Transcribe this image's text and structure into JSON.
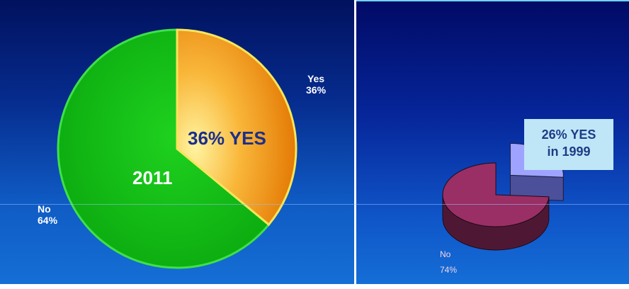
{
  "chart_data": [
    {
      "type": "pie",
      "slices": [
        {
          "label": "Yes",
          "value": 36,
          "value_label": "36%",
          "color": "#f08a12"
        },
        {
          "label": "No",
          "value": 64,
          "value_label": "64%",
          "color": "#10c312"
        }
      ],
      "annotations": {
        "year": "2011",
        "highlight": "36% YES"
      }
    },
    {
      "type": "pie",
      "style": "3d",
      "slices": [
        {
          "label": "Yes",
          "value": 26,
          "color": "#9ea3ff"
        },
        {
          "label": "No",
          "value": 74,
          "value_label": "74%",
          "color": "#9a2f65"
        }
      ],
      "annotations": {
        "callout_line1": "26% YES",
        "callout_line2": "in 1999"
      }
    }
  ]
}
